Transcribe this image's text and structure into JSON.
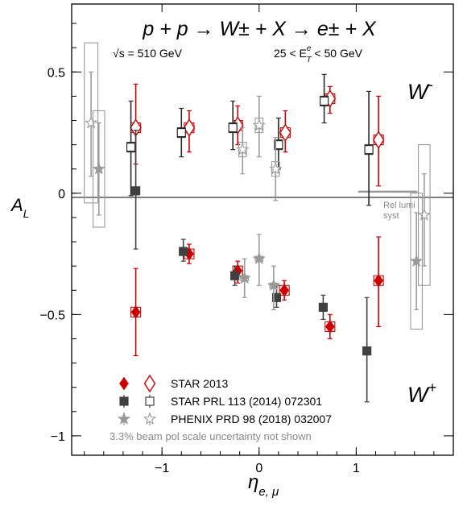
{
  "chart_data": {
    "type": "scatter",
    "title": "p + p → W± + X → e± + X",
    "sqrt_s_prefix": "√",
    "sqrt_s_label": "s = 510 GeV",
    "et_range_left": "25 < E",
    "et_range_sup": "e",
    "et_range_sub": "T",
    "et_range_right": " < 50 GeV",
    "xlabel_main": "η",
    "xlabel_sub": "e, μ",
    "ylabel_main": "A",
    "ylabel_sub": "L",
    "xlim": [
      -1.93,
      2.0
    ],
    "ylim": [
      -1.08,
      0.78
    ],
    "x_ticks": [
      {
        "value": -1,
        "label": "−1"
      },
      {
        "value": 0,
        "label": "0"
      },
      {
        "value": 1,
        "label": "1"
      }
    ],
    "y_ticks": [
      {
        "value": 0.5,
        "label": "0.5"
      },
      {
        "value": 0,
        "label": "0"
      },
      {
        "value": -0.5,
        "label": "−0.5"
      },
      {
        "value": -1,
        "label": "−1"
      }
    ],
    "wminus_label": "W",
    "wminus_sup": "-",
    "wplus_label": "W",
    "wplus_sup": "+",
    "rel_lumi_label_1": "Rel lumi",
    "rel_lumi_label_2": "syst",
    "rel_lumi_range": [
      1.63,
      1.02
    ],
    "colors": {
      "star2013": "#cc0000",
      "star_prl": "#404040",
      "star_prl_open": "#2a2a2a",
      "phenix": "#9a9a9a",
      "axis": "#000000"
    },
    "legend": [
      {
        "label": "STAR 2013"
      },
      {
        "label": "STAR PRL 113 (2014) 072301"
      },
      {
        "label": "PHENIX PRD 98 (2018) 032007"
      }
    ],
    "footnote": "3.3% beam pol scale uncertainty not shown",
    "series": [
      {
        "name": "STAR 2013",
        "charge": "W-",
        "marker": "diamond-open",
        "points": [
          {
            "x": -1.27,
            "y": 0.27,
            "lo": 0.12,
            "hi": 0.45,
            "sx": 0.05,
            "sy": 0.02
          },
          {
            "x": -0.72,
            "y": 0.27,
            "lo": 0.17,
            "hi": 0.34,
            "sx": 0.05,
            "sy": 0.02
          },
          {
            "x": -0.22,
            "y": 0.28,
            "lo": 0.2,
            "hi": 0.36,
            "sx": 0.05,
            "sy": 0.02
          },
          {
            "x": 0.27,
            "y": 0.25,
            "lo": 0.17,
            "hi": 0.34,
            "sx": 0.05,
            "sy": 0.02
          },
          {
            "x": 0.73,
            "y": 0.39,
            "lo": 0.33,
            "hi": 0.44,
            "sx": 0.05,
            "sy": 0.02
          },
          {
            "x": 1.23,
            "y": 0.22,
            "lo": 0.03,
            "hi": 0.4,
            "sx": 0.05,
            "sy": 0.02
          }
        ]
      },
      {
        "name": "STAR 2013",
        "charge": "W+",
        "marker": "diamond-filled",
        "points": [
          {
            "x": -1.27,
            "y": -0.49,
            "lo": -0.67,
            "hi": -0.31,
            "sx": 0.05,
            "sy": 0.02
          },
          {
            "x": -0.72,
            "y": -0.25,
            "lo": -0.29,
            "hi": -0.21,
            "sx": 0.05,
            "sy": 0.02
          },
          {
            "x": -0.22,
            "y": -0.32,
            "lo": -0.37,
            "hi": -0.28,
            "sx": 0.05,
            "sy": 0.02
          },
          {
            "x": 0.26,
            "y": -0.4,
            "lo": -0.44,
            "hi": -0.36,
            "sx": 0.05,
            "sy": 0.02
          },
          {
            "x": 0.73,
            "y": -0.55,
            "lo": -0.6,
            "hi": -0.5,
            "sx": 0.05,
            "sy": 0.02
          },
          {
            "x": 1.23,
            "y": -0.36,
            "lo": -0.55,
            "hi": -0.18,
            "sx": 0.05,
            "sy": 0.02
          }
        ]
      },
      {
        "name": "STAR PRL 113 (2014) 072301",
        "charge": "W-",
        "marker": "square-open",
        "points": [
          {
            "x": -1.32,
            "y": 0.19,
            "lo": -0.01,
            "hi": 0.38,
            "sx": 0.04,
            "sy": 0.02
          },
          {
            "x": -0.8,
            "y": 0.25,
            "lo": 0.15,
            "hi": 0.35,
            "sx": 0.04,
            "sy": 0.02
          },
          {
            "x": -0.27,
            "y": 0.27,
            "lo": 0.18,
            "hi": 0.38,
            "sx": 0.04,
            "sy": 0.02
          },
          {
            "x": 0.2,
            "y": 0.2,
            "lo": 0.1,
            "hi": 0.31,
            "sx": 0.04,
            "sy": 0.02
          },
          {
            "x": 0.67,
            "y": 0.38,
            "lo": 0.29,
            "hi": 0.49,
            "sx": 0.04,
            "sy": 0.02
          },
          {
            "x": 1.13,
            "y": 0.18,
            "lo": -0.05,
            "hi": 0.42,
            "sx": 0.04,
            "sy": 0.02
          }
        ]
      },
      {
        "name": "STAR PRL 113 (2014) 072301",
        "charge": "W+",
        "marker": "square-filled",
        "points": [
          {
            "x": -1.27,
            "y": 0.01,
            "lo": -0.23,
            "hi": 0.26,
            "sx": 0,
            "sy": 0
          },
          {
            "x": -0.78,
            "y": -0.24,
            "lo": -0.28,
            "hi": -0.19,
            "sx": 0,
            "sy": 0
          },
          {
            "x": -0.25,
            "y": -0.34,
            "lo": -0.38,
            "hi": -0.3,
            "sx": 0,
            "sy": 0
          },
          {
            "x": 0.18,
            "y": -0.43,
            "lo": -0.47,
            "hi": -0.38,
            "sx": 0,
            "sy": 0
          },
          {
            "x": 0.66,
            "y": -0.47,
            "lo": -0.52,
            "hi": -0.42,
            "sx": 0,
            "sy": 0
          },
          {
            "x": 1.11,
            "y": -0.65,
            "lo": -0.86,
            "hi": -0.43,
            "sx": 0,
            "sy": 0
          }
        ]
      },
      {
        "name": "PHENIX PRD 98 (2018) 032007",
        "charge": "W-",
        "marker": "star-open",
        "points": [
          {
            "x": -1.73,
            "y": 0.29,
            "lo": 0.07,
            "hi": 0.5,
            "sx": 0.07,
            "sy": 0.33
          },
          {
            "x": -0.17,
            "y": 0.18,
            "lo": 0.08,
            "hi": 0.27,
            "sx": 0.04,
            "sy": 0.03
          },
          {
            "x": 0.0,
            "y": 0.28,
            "lo": 0.15,
            "hi": 0.4,
            "sx": 0.04,
            "sy": 0.03
          },
          {
            "x": 0.17,
            "y": 0.1,
            "lo": -0.03,
            "hi": 0.23,
            "sx": 0.04,
            "sy": 0.03
          },
          {
            "x": 1.7,
            "y": -0.09,
            "lo": -0.3,
            "hi": 0.08,
            "sx": 0.06,
            "sy": 0.29
          }
        ]
      },
      {
        "name": "PHENIX PRD 98 (2018) 032007",
        "charge": "W+",
        "marker": "star-filled",
        "points": [
          {
            "x": -1.65,
            "y": 0.1,
            "lo": -0.09,
            "hi": 0.29,
            "sx": 0.06,
            "sy": 0.24
          },
          {
            "x": -0.15,
            "y": -0.35,
            "lo": -0.43,
            "hi": -0.27,
            "sx": 0.04,
            "sy": 0.01
          },
          {
            "x": 0.0,
            "y": -0.27,
            "lo": -0.38,
            "hi": -0.17,
            "sx": 0.04,
            "sy": 0.01
          },
          {
            "x": 0.15,
            "y": -0.38,
            "lo": -0.48,
            "hi": -0.3,
            "sx": 0.04,
            "sy": 0.01
          },
          {
            "x": 1.62,
            "y": -0.28,
            "lo": -0.48,
            "hi": -0.08,
            "sx": 0.06,
            "sy": 0.28
          }
        ]
      }
    ]
  }
}
